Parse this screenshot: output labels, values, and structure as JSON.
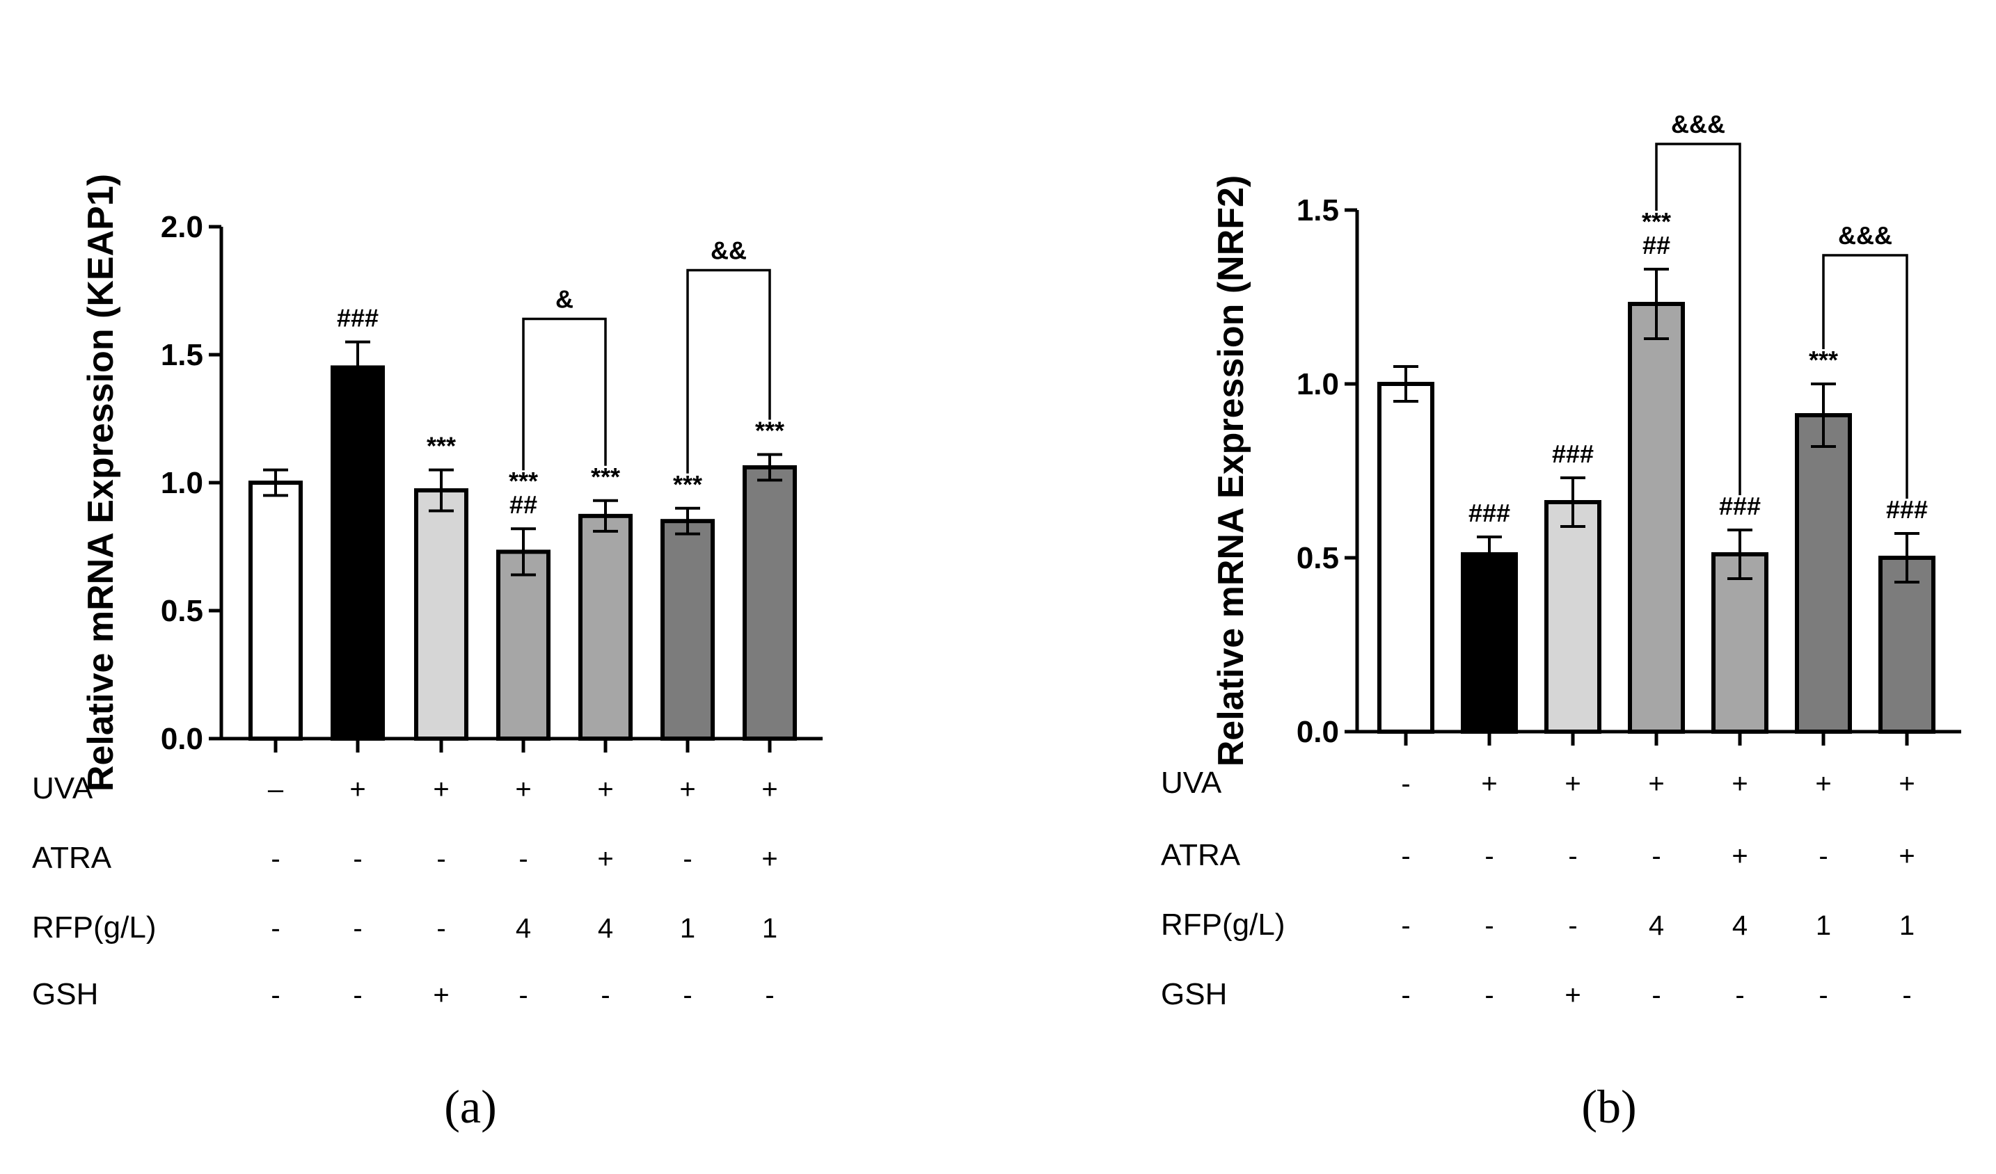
{
  "chart_data": [
    {
      "panel": "(a)",
      "type": "bar",
      "ylabel": "Relative mRNA Expression (KEAP1)",
      "ylim": [
        0,
        2.0
      ],
      "yticks": [
        0.0,
        0.5,
        1.0,
        1.5,
        2.0
      ],
      "ytick_labels": [
        "0.0",
        "0.5",
        "1.0",
        "1.5",
        "2.0"
      ],
      "values": [
        1.0,
        1.45,
        0.97,
        0.73,
        0.87,
        0.85,
        1.06
      ],
      "errors": [
        0.05,
        0.1,
        0.08,
        0.09,
        0.06,
        0.05,
        0.05
      ],
      "colors": [
        "#ffffff",
        "#000000",
        "#d6d6d6",
        "#a6a6a6",
        "#a6a6a6",
        "#7c7c7c",
        "#7c7c7c"
      ],
      "annotations": [
        [],
        [
          "###"
        ],
        [
          "***"
        ],
        [
          "***",
          "##"
        ],
        [
          "***"
        ],
        [
          "***"
        ],
        [
          "***"
        ]
      ],
      "brackets": [
        {
          "from": 3,
          "to": 4,
          "level": 1.64,
          "label": "&"
        },
        {
          "from": 5,
          "to": 6,
          "level": 1.83,
          "label": "&&"
        }
      ],
      "conditions": [
        {
          "label": "UVA",
          "values": [
            "–",
            "+",
            "+",
            "+",
            "+",
            "+",
            "+"
          ]
        },
        {
          "label": "ATRA",
          "values": [
            "-",
            "-",
            "-",
            "-",
            "+",
            "-",
            "+"
          ]
        },
        {
          "label": "RFP(g/L)",
          "values": [
            "-",
            "-",
            "-",
            "4",
            "4",
            "1",
            "1"
          ]
        },
        {
          "label": "GSH",
          "values": [
            "-",
            "-",
            "+",
            "-",
            "-",
            "-",
            "-"
          ]
        }
      ]
    },
    {
      "panel": "(b)",
      "type": "bar",
      "ylabel": "Relative mRNA Expression (NRF2)",
      "ylim": [
        0,
        1.5
      ],
      "yticks": [
        0.0,
        0.5,
        1.0,
        1.5
      ],
      "ytick_labels": [
        "0.0",
        "0.5",
        "1.0",
        "1.5"
      ],
      "values": [
        1.0,
        0.51,
        0.66,
        1.23,
        0.51,
        0.91,
        0.5
      ],
      "errors": [
        0.05,
        0.05,
        0.07,
        0.1,
        0.07,
        0.09,
        0.07
      ],
      "colors": [
        "#ffffff",
        "#000000",
        "#d6d6d6",
        "#a6a6a6",
        "#a6a6a6",
        "#7c7c7c",
        "#7c7c7c"
      ],
      "annotations": [
        [],
        [
          "###"
        ],
        [
          "###"
        ],
        [
          "***",
          "##"
        ],
        [
          "###"
        ],
        [
          "***"
        ],
        [
          "###"
        ]
      ],
      "brackets": [
        {
          "from": 3,
          "to": 4,
          "level": 1.69,
          "label": "&&&"
        },
        {
          "from": 5,
          "to": 6,
          "level": 1.37,
          "label": "&&&"
        }
      ],
      "conditions": [
        {
          "label": "UVA",
          "values": [
            "-",
            "+",
            "+",
            "+",
            "+",
            "+",
            "+"
          ]
        },
        {
          "label": "ATRA",
          "values": [
            "-",
            "-",
            "-",
            "-",
            "+",
            "-",
            "+"
          ]
        },
        {
          "label": "RFP(g/L)",
          "values": [
            "-",
            "-",
            "-",
            "4",
            "4",
            "1",
            "1"
          ]
        },
        {
          "label": "GSH",
          "values": [
            "-",
            "-",
            "+",
            "-",
            "-",
            "-",
            "-"
          ]
        }
      ]
    }
  ]
}
